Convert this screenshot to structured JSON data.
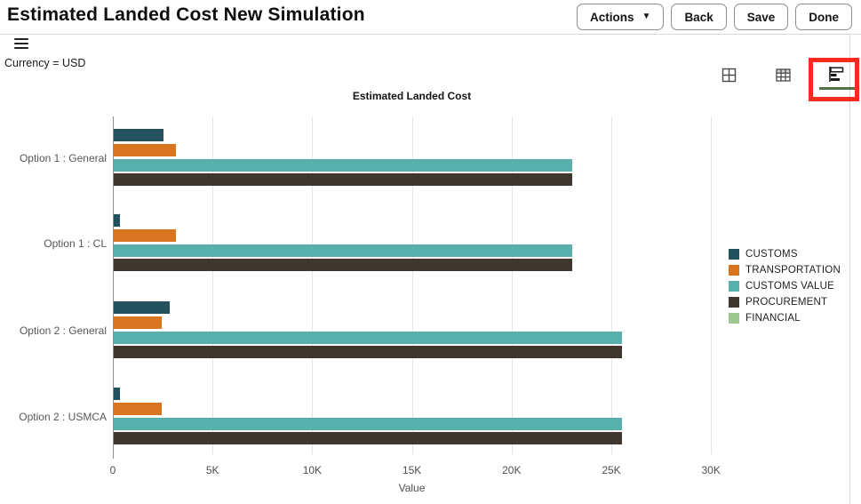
{
  "header": {
    "title": "Estimated Landed Cost New Simulation",
    "buttons": [
      {
        "label": "Actions",
        "has_caret": true
      },
      {
        "label": "Back",
        "has_caret": false
      },
      {
        "label": "Save",
        "has_caret": false
      },
      {
        "label": "Done",
        "has_caret": false
      }
    ],
    "caret_glyph": "▼"
  },
  "toolbar": {
    "filter_text": "Currency = USD",
    "view_icons": [
      "grid-view-icon",
      "table-view-icon",
      "bar-chart-view-icon"
    ],
    "selected_view": "bar-chart-view",
    "selected_underline_color": "#527245",
    "highlight_annotation_color": "#fb2c1d"
  },
  "chart_data": {
    "type": "bar",
    "orientation": "horizontal",
    "title": "Estimated Landed Cost",
    "xlabel": "Value",
    "ylabel": "",
    "categories": [
      "Option 1 : General",
      "Option 1 : CL",
      "Option 2 : General",
      "Option 2 : USMCA"
    ],
    "series": [
      {
        "name": "CUSTOMS",
        "color": "#22525e",
        "values": [
          2500,
          300,
          2800,
          300
        ]
      },
      {
        "name": "TRANSPORTATION",
        "color": "#d9751f",
        "values": [
          3100,
          3100,
          2400,
          2400
        ]
      },
      {
        "name": "CUSTOMS VALUE",
        "color": "#58b0ac",
        "values": [
          23000,
          23000,
          25500,
          25500
        ]
      },
      {
        "name": "PROCUREMENT",
        "color": "#3f362e",
        "values": [
          23000,
          23000,
          25500,
          25500
        ]
      },
      {
        "name": "FINANCIAL",
        "color": "#9dc78e",
        "values": [
          0,
          0,
          0,
          0
        ]
      }
    ],
    "x_ticks": [
      "0",
      "5K",
      "10K",
      "15K",
      "20K",
      "25K",
      "30K"
    ],
    "x_tick_values": [
      0,
      5000,
      10000,
      15000,
      20000,
      25000,
      30000
    ],
    "xlim": [
      0,
      30000
    ],
    "grid": true,
    "legend_position": "right"
  }
}
